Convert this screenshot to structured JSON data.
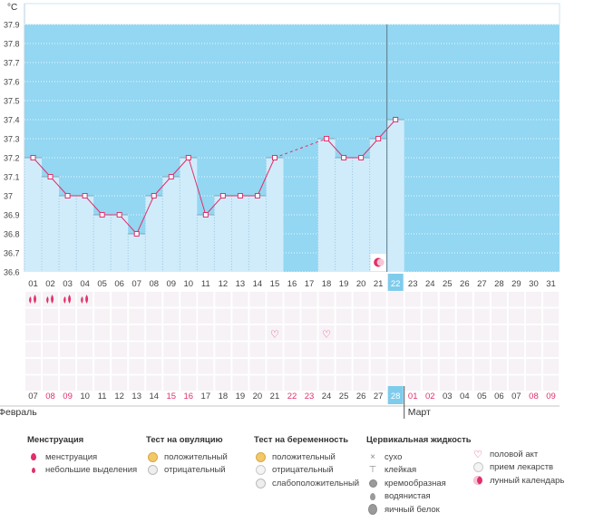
{
  "chart_data": {
    "type": "line",
    "unit_label": "°C",
    "ylim": [
      36.6,
      37.9
    ],
    "yticks": [
      "37.9",
      "37.8",
      "37.7",
      "37.6",
      "37.5",
      "37.4",
      "37.3",
      "37.2",
      "37.1",
      "37",
      "36.9",
      "36.8",
      "36.7",
      "36.6"
    ],
    "days": [
      "01",
      "02",
      "03",
      "04",
      "05",
      "06",
      "07",
      "08",
      "09",
      "10",
      "11",
      "12",
      "13",
      "14",
      "15",
      "16",
      "17",
      "18",
      "19",
      "20",
      "21",
      "22",
      "23",
      "24",
      "25",
      "26",
      "27",
      "28",
      "29",
      "30",
      "31"
    ],
    "temps": [
      37.2,
      37.1,
      37.0,
      37.0,
      36.9,
      36.9,
      36.8,
      37.0,
      37.1,
      37.2,
      36.9,
      37.0,
      37.0,
      37.0,
      37.2,
      null,
      null,
      37.3,
      37.2,
      37.2,
      37.3,
      37.4,
      null,
      null,
      null,
      null,
      null,
      null,
      null,
      null,
      null
    ],
    "dashed_segment": [
      "15",
      "18"
    ],
    "current_day": "22",
    "moon_day": "21",
    "menstruation_days": [
      "01",
      "02",
      "03",
      "04"
    ],
    "intercourse_days": [
      "15",
      "18"
    ],
    "dates": [
      "07",
      "08",
      "09",
      "10",
      "11",
      "12",
      "13",
      "14",
      "15",
      "16",
      "17",
      "18",
      "19",
      "20",
      "21",
      "22",
      "23",
      "24",
      "25",
      "26",
      "27",
      "28",
      "01",
      "02",
      "03",
      "04",
      "05",
      "06",
      "07",
      "08",
      "09"
    ],
    "weekend_date_indexes": [
      1,
      2,
      8,
      9,
      15,
      16,
      22,
      23,
      29,
      30
    ],
    "current_date": "28",
    "month_labels": [
      "Февраль",
      "Март"
    ],
    "colors": {
      "sky": "#93d7f2",
      "fill": "#d0ecfb",
      "line": "#e0306a",
      "today": "#7fcbec",
      "weekend": "#e0306a",
      "grid": "#ffffff"
    }
  },
  "legend": {
    "menstruation": {
      "title": "Менструация",
      "items": [
        "менструация",
        "небольшие выделения"
      ]
    },
    "ovulation": {
      "title": "Тест на овуляцию",
      "items": [
        "положительный",
        "отрицательный"
      ]
    },
    "pregnancy": {
      "title": "Тест на беременность",
      "items": [
        "положительный",
        "отрицательный",
        "слабоположительный"
      ]
    },
    "cervical": {
      "title": "Цервикальная жидкость",
      "items": [
        "сухо",
        "клейкая",
        "кремообразная",
        "водянистая",
        "яичный белок"
      ]
    },
    "other": {
      "items": [
        "половой акт",
        "прием лекарств",
        "лунный календарь"
      ]
    }
  }
}
